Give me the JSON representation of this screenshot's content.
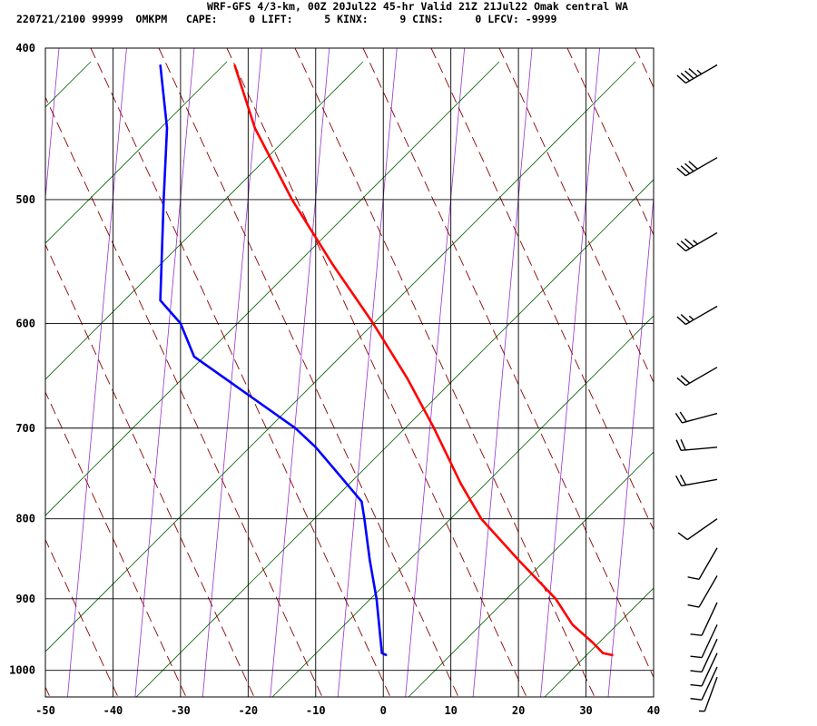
{
  "header": {
    "title": "WRF-GFS 4/3-km, 00Z 20Jul22 45-hr Valid 21Z 21Jul22 Omak central WA",
    "subtitle": "220721/2100 99999  OMKPM   CAPE:     0 LIFT:     5 KINX:     9 CINS:     0 LFCV: -9999"
  },
  "colors": {
    "temperature": "#ff0000",
    "dewpoint": "#0000ff",
    "dry_adiabat": "#8b0000",
    "isotherm_skewed": "#9932cc",
    "mixing_ratio": "#006400",
    "grid": "#000000",
    "wind_barb": "#000000"
  },
  "chart_data": {
    "type": "line",
    "title": "WRF-GFS 4/3-km, 00Z 20Jul22 45-hr Valid 21Z 21Jul22 Omak central WA",
    "xlim": [
      -50,
      40
    ],
    "ylim_pressure_hPa": [
      1040,
      400
    ],
    "y_scale": "log",
    "grid": true,
    "x_ticks": [
      "-50",
      "-40",
      "-30",
      "-20",
      "-10",
      "0",
      "10",
      "20",
      "30",
      "40"
    ],
    "y_ticks": [
      "400",
      "500",
      "600",
      "700",
      "800",
      "900",
      "1000"
    ],
    "series": [
      {
        "key": "temperature",
        "points": [
          {
            "p": 978,
            "x": 34.0
          },
          {
            "p": 975,
            "x": 32.5
          },
          {
            "p": 960,
            "x": 31.0
          },
          {
            "p": 935,
            "x": 28.0
          },
          {
            "p": 900,
            "x": 25.5
          },
          {
            "p": 850,
            "x": 20.0
          },
          {
            "p": 800,
            "x": 14.5
          },
          {
            "p": 760,
            "x": 11.5
          },
          {
            "p": 700,
            "x": 7.5
          },
          {
            "p": 650,
            "x": 3.5
          },
          {
            "p": 600,
            "x": -1.5
          },
          {
            "p": 550,
            "x": -7.5
          },
          {
            "p": 500,
            "x": -13.5
          },
          {
            "p": 450,
            "x": -19.0
          },
          {
            "p": 410,
            "x": -22.0
          }
        ]
      },
      {
        "key": "dewpoint",
        "points": [
          {
            "p": 978,
            "x": 0.5
          },
          {
            "p": 975,
            "x": -0.2
          },
          {
            "p": 900,
            "x": -1.0
          },
          {
            "p": 850,
            "x": -2.0
          },
          {
            "p": 800,
            "x": -2.8
          },
          {
            "p": 780,
            "x": -3.2
          },
          {
            "p": 750,
            "x": -6.5
          },
          {
            "p": 720,
            "x": -10.0
          },
          {
            "p": 700,
            "x": -13.0
          },
          {
            "p": 630,
            "x": -28.0
          },
          {
            "p": 600,
            "x": -30.0
          },
          {
            "p": 580,
            "x": -33.0
          },
          {
            "p": 500,
            "x": -32.5
          },
          {
            "p": 450,
            "x": -32.0
          },
          {
            "p": 410,
            "x": -33.0
          }
        ]
      }
    ],
    "wind_barbs": [
      {
        "p": 410,
        "dir": 240,
        "speed_kt": 45
      },
      {
        "p": 470,
        "dir": 240,
        "speed_kt": 40
      },
      {
        "p": 525,
        "dir": 240,
        "speed_kt": 35
      },
      {
        "p": 585,
        "dir": 240,
        "speed_kt": 25
      },
      {
        "p": 640,
        "dir": 240,
        "speed_kt": 20
      },
      {
        "p": 685,
        "dir": 255,
        "speed_kt": 20
      },
      {
        "p": 720,
        "dir": 265,
        "speed_kt": 20
      },
      {
        "p": 755,
        "dir": 260,
        "speed_kt": 20
      },
      {
        "p": 800,
        "dir": 235,
        "speed_kt": 10
      },
      {
        "p": 835,
        "dir": 210,
        "speed_kt": 10
      },
      {
        "p": 870,
        "dir": 210,
        "speed_kt": 10
      },
      {
        "p": 905,
        "dir": 205,
        "speed_kt": 10
      },
      {
        "p": 935,
        "dir": 205,
        "speed_kt": 10
      },
      {
        "p": 955,
        "dir": 205,
        "speed_kt": 10
      },
      {
        "p": 975,
        "dir": 205,
        "speed_kt": 10
      },
      {
        "p": 995,
        "dir": 205,
        "speed_kt": 10
      },
      {
        "p": 1010,
        "dir": 200,
        "speed_kt": 5
      }
    ]
  }
}
